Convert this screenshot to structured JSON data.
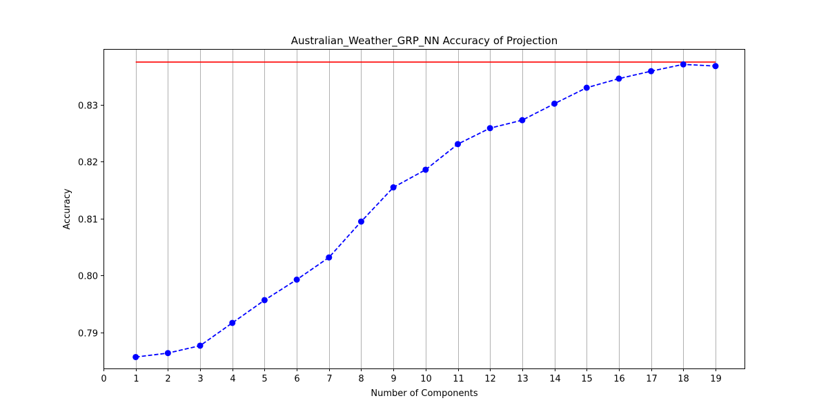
{
  "chart_data": {
    "type": "line",
    "title": "Australian_Weather_GRP_NN Accuracy of Projection",
    "xlabel": "Number of Components",
    "ylabel": "Accuracy",
    "xlim": [
      0,
      19.9
    ],
    "ylim": [
      0.7837,
      0.8398
    ],
    "xticks": [
      0,
      1,
      2,
      3,
      4,
      5,
      6,
      7,
      8,
      9,
      10,
      11,
      12,
      13,
      14,
      15,
      16,
      17,
      18,
      19
    ],
    "yticks": [
      0.79,
      0.8,
      0.81,
      0.82,
      0.83
    ],
    "ytick_labels": [
      "0.79",
      "0.80",
      "0.81",
      "0.82",
      "0.83"
    ],
    "grid": "vertical",
    "baseline": {
      "value": 0.8375,
      "x_range": [
        1,
        19
      ],
      "color": "#ff0000"
    },
    "series": [
      {
        "color": "#0000ff",
        "line_style": "dashed",
        "marker": "circle",
        "x": [
          1,
          2,
          3,
          4,
          5,
          6,
          7,
          8,
          9,
          10,
          11,
          12,
          13,
          14,
          15,
          16,
          17,
          18,
          19
        ],
        "y": [
          0.7857,
          0.7864,
          0.7877,
          0.7917,
          0.7957,
          0.7993,
          0.8032,
          0.8095,
          0.8155,
          0.8186,
          0.8231,
          0.8259,
          0.8273,
          0.8302,
          0.833,
          0.8346,
          0.8359,
          0.8371,
          0.8368
        ]
      }
    ]
  }
}
